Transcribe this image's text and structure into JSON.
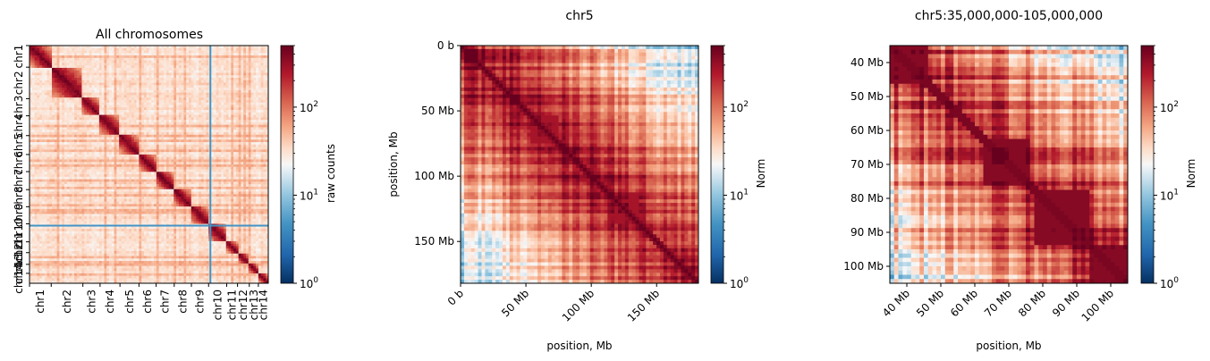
{
  "colors": {
    "colormap": "RdBu_r",
    "low": "#053061",
    "mid": "#f7f7f7",
    "high": "#67001f",
    "separator": "#4393c3",
    "axes": "#000000"
  },
  "chart_data": [
    {
      "type": "heatmap",
      "title": "All chromosomes",
      "xlabel": "",
      "ylabel": "",
      "categories": [
        "chr1",
        "chr2",
        "chr3",
        "chr4",
        "chr5",
        "chr6",
        "chr7",
        "chr8",
        "chr9",
        "chr10",
        "chr11",
        "chr12",
        "chr13",
        "chr14"
      ],
      "xticklabels": [
        "chr1",
        "chr2",
        "chr3",
        "chr4",
        "chr5",
        "chr6",
        "chr7",
        "chr8",
        "chr9",
        "chr10",
        "chr11",
        "chr12",
        "chr13",
        "chr14"
      ],
      "yticklabels": [
        "chr1",
        "chr2",
        "chr3",
        "chr4",
        "chr5",
        "chr6",
        "chr7",
        "chr8",
        "chr9",
        "chr10",
        "chr11",
        "chr12",
        "chr13",
        "chr14"
      ],
      "chromosome_lengths_mb": [
        24,
        35,
        19,
        22,
        21,
        19,
        20,
        19,
        19,
        20,
        12,
        13,
        10,
        11
      ],
      "colorbar": {
        "label": "raw counts",
        "scale": "log",
        "range": [
          1,
          500
        ],
        "ticklabels": [
          "10^0",
          "10^1",
          "10^2"
        ],
        "tickvalues": [
          1,
          10,
          100
        ]
      }
    },
    {
      "type": "heatmap",
      "title": "chr5",
      "xlabel": "position, Mb",
      "ylabel": "position, Mb",
      "x_range_mb": [
        0,
        182
      ],
      "y_range_mb": [
        0,
        182
      ],
      "xticks_mb": [
        0,
        50,
        100,
        150
      ],
      "xticklabels": [
        "0 b",
        "50 Mb",
        "100 Mb",
        "150 Mb"
      ],
      "yticks_mb": [
        0,
        50,
        100,
        150
      ],
      "yticklabels": [
        "0 b",
        "50 Mb",
        "100 Mb",
        "150 Mb"
      ],
      "colorbar": {
        "label": "Norm",
        "scale": "log",
        "range": [
          1,
          500
        ],
        "ticklabels": [
          "10^0",
          "10^1",
          "10^2"
        ],
        "tickvalues": [
          1,
          10,
          100
        ]
      }
    },
    {
      "type": "heatmap",
      "title": "chr5:35,000,000-105,000,000",
      "xlabel": "position, Mb",
      "ylabel": "",
      "x_range_mb": [
        35,
        105
      ],
      "y_range_mb": [
        35,
        105
      ],
      "xticks_mb": [
        40,
        50,
        60,
        70,
        80,
        90,
        100
      ],
      "xticklabels": [
        "40 Mb",
        "50 Mb",
        "60 Mb",
        "70 Mb",
        "80 Mb",
        "90 Mb",
        "100 Mb"
      ],
      "yticks_mb": [
        40,
        50,
        60,
        70,
        80,
        90,
        100
      ],
      "yticklabels": [
        "40 Mb",
        "50 Mb",
        "60 Mb",
        "70 Mb",
        "80 Mb",
        "90 Mb",
        "100 Mb"
      ],
      "colorbar": {
        "label": "Norm",
        "scale": "log",
        "range": [
          1,
          500
        ],
        "ticklabels": [
          "10^0",
          "10^1",
          "10^2"
        ],
        "tickvalues": [
          1,
          10,
          100
        ]
      }
    }
  ]
}
